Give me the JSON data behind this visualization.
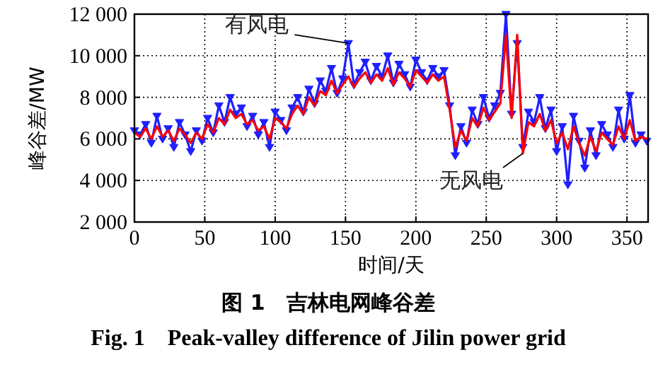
{
  "chart_data": {
    "type": "line",
    "title": "图 1　吉林电网峰谷差",
    "subtitle": "Fig. 1　Peak-valley difference of Jilin power grid",
    "xlabel": "时间/天",
    "ylabel": "峰谷差/MW",
    "x": [
      0,
      4,
      8,
      12,
      16,
      20,
      24,
      28,
      32,
      36,
      40,
      44,
      48,
      52,
      56,
      60,
      64,
      68,
      72,
      76,
      80,
      84,
      88,
      92,
      96,
      100,
      104,
      108,
      112,
      116,
      120,
      124,
      128,
      132,
      136,
      140,
      144,
      148,
      152,
      156,
      160,
      164,
      168,
      172,
      176,
      180,
      184,
      188,
      192,
      196,
      200,
      204,
      208,
      212,
      216,
      220,
      224,
      228,
      232,
      236,
      240,
      244,
      248,
      252,
      256,
      260,
      264,
      268,
      272,
      276,
      280,
      284,
      288,
      292,
      296,
      300,
      304,
      308,
      312,
      316,
      320,
      324,
      328,
      332,
      336,
      340,
      344,
      348,
      352,
      356,
      360,
      364
    ],
    "series": [
      {
        "name": null,
        "color": "#1f1fff",
        "marker": "triangle",
        "values": [
          6400,
          6200,
          6700,
          5800,
          7100,
          6000,
          6500,
          5600,
          6800,
          6200,
          5400,
          6400,
          5900,
          7000,
          6300,
          7600,
          6800,
          8000,
          7200,
          7500,
          6600,
          7100,
          6200,
          6800,
          5600,
          7300,
          6900,
          6400,
          7500,
          8000,
          7300,
          8400,
          7700,
          8800,
          8300,
          9400,
          8200,
          8900,
          10600,
          8600,
          9200,
          9700,
          8800,
          9500,
          9000,
          10000,
          8700,
          9600,
          9100,
          8500,
          9800,
          9200,
          8800,
          9400,
          9000,
          9300,
          7600,
          5200,
          6600,
          5800,
          7400,
          6700,
          8000,
          7000,
          7600,
          8200,
          12000,
          7200,
          10600,
          5600,
          7300,
          6800,
          8000,
          6500,
          7400,
          5400,
          6600,
          3800,
          7100,
          5900,
          4600,
          6400,
          5200,
          6700,
          6200,
          5600,
          7400,
          6000,
          8100,
          5800,
          6200,
          5900
        ]
      },
      {
        "name": null,
        "color": "#ff0000",
        "values": [
          6300,
          6100,
          6500,
          6000,
          6600,
          6100,
          6400,
          5900,
          6500,
          6200,
          5800,
          6300,
          6000,
          6700,
          6300,
          7000,
          6700,
          7400,
          7000,
          7200,
          6700,
          6900,
          6400,
          6600,
          6000,
          7000,
          6800,
          6500,
          7200,
          7600,
          7200,
          8000,
          7600,
          8300,
          8100,
          8800,
          8200,
          8600,
          9000,
          8500,
          8900,
          9200,
          8700,
          9100,
          8800,
          9400,
          8600,
          9200,
          8900,
          8500,
          9300,
          9000,
          8700,
          9100,
          8800,
          9000,
          7400,
          5600,
          6400,
          5900,
          7000,
          6600,
          7500,
          6900,
          7300,
          7700,
          11000,
          7000,
          11000,
          5300,
          6800,
          6600,
          7200,
          6400,
          6900,
          5800,
          6300,
          5500,
          6600,
          5800,
          5200,
          6100,
          5400,
          6300,
          6000,
          5700,
          6600,
          6000,
          6900,
          5900,
          6100,
          6000
        ]
      }
    ],
    "annotations": [
      {
        "text": "有风电",
        "x": 152,
        "y": 10600
      },
      {
        "text": "无风电",
        "x": 276,
        "y": 5300
      }
    ],
    "xlim": [
      0,
      365
    ],
    "ylim": [
      2000,
      12000
    ],
    "xticks": [
      0,
      50,
      100,
      150,
      200,
      250,
      300,
      350
    ],
    "yticks": [
      {
        "value": 2000,
        "label": "2 000"
      },
      {
        "value": 4000,
        "label": "4 000"
      },
      {
        "value": 6000,
        "label": "6 000"
      },
      {
        "value": 8000,
        "label": "8 000"
      },
      {
        "value": 10000,
        "label": "10 000"
      },
      {
        "value": 12000,
        "label": "12 000"
      }
    ],
    "grid": true
  }
}
